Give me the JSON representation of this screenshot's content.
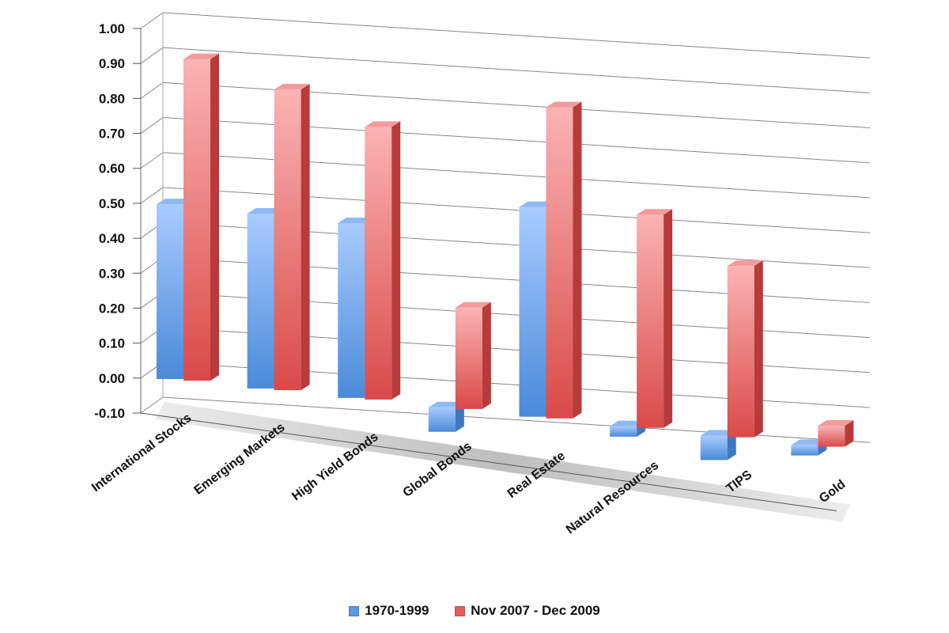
{
  "chart_data": {
    "type": "bar",
    "categories": [
      "International Stocks",
      "Emerging Markets",
      "High Yield Bonds",
      "Global Bonds",
      "Real Estate",
      "Natural Resources",
      "TIPS",
      "Gold"
    ],
    "series": [
      {
        "name": "1970-1999",
        "color": "#6fa3e6",
        "values": [
          0.5,
          0.5,
          0.5,
          -0.07,
          0.6,
          -0.03,
          -0.07,
          -0.03
        ]
      },
      {
        "name": "Nov 2007 - Dec 2009",
        "color": "#e86e6e",
        "values": [
          0.92,
          0.86,
          0.78,
          0.29,
          0.89,
          0.61,
          0.49,
          0.06
        ]
      }
    ],
    "y_ticks": [
      "1.00",
      "0.90",
      "0.80",
      "0.70",
      "0.60",
      "0.50",
      "0.40",
      "0.30",
      "0.20",
      "0.10",
      "0.00",
      "-0.10"
    ],
    "ylim": [
      -0.1,
      1.0
    ],
    "grid": true,
    "legend_position": "bottom"
  }
}
